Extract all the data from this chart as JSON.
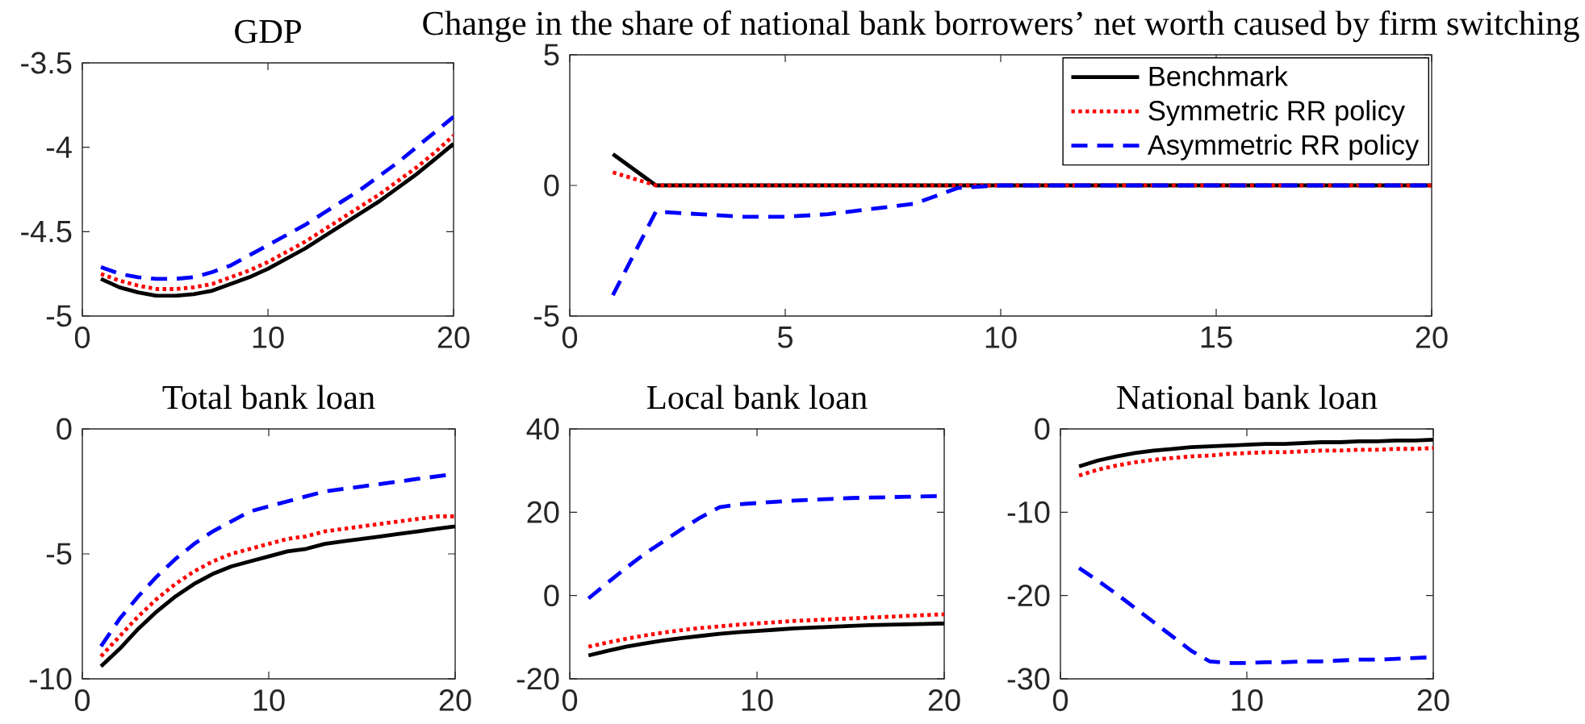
{
  "chart_data": [
    {
      "type": "line",
      "title": "GDP",
      "x": [
        1,
        2,
        3,
        4,
        5,
        6,
        7,
        8,
        9,
        10,
        11,
        12,
        13,
        14,
        15,
        16,
        17,
        18,
        19,
        20
      ],
      "xlim": [
        0,
        20
      ],
      "xticks": [
        0,
        10,
        20
      ],
      "ylim": [
        -5,
        -3.5
      ],
      "yticks": [
        -5,
        -4.5,
        -4,
        -3.5
      ],
      "series": [
        {
          "color": "#000000",
          "line_style": "solid",
          "values": [
            -4.78,
            -4.83,
            -4.86,
            -4.88,
            -4.88,
            -4.87,
            -4.85,
            -4.81,
            -4.77,
            -4.72,
            -4.66,
            -4.6,
            -4.53,
            -4.46,
            -4.39,
            -4.32,
            -4.24,
            -4.16,
            -4.07,
            -3.98
          ]
        },
        {
          "color": "#ff0000",
          "line_style": "dotted",
          "values": [
            -4.75,
            -4.79,
            -4.82,
            -4.84,
            -4.84,
            -4.83,
            -4.81,
            -4.77,
            -4.73,
            -4.68,
            -4.62,
            -4.56,
            -4.49,
            -4.42,
            -4.35,
            -4.28,
            -4.2,
            -4.12,
            -4.03,
            -3.93
          ]
        },
        {
          "color": "#0000ff",
          "line_style": "dashed",
          "values": [
            -4.71,
            -4.75,
            -4.77,
            -4.78,
            -4.78,
            -4.77,
            -4.74,
            -4.7,
            -4.64,
            -4.58,
            -4.52,
            -4.46,
            -4.39,
            -4.32,
            -4.25,
            -4.17,
            -4.09,
            -4.0,
            -3.91,
            -3.82
          ]
        }
      ]
    },
    {
      "type": "line",
      "title": "Change in the share of national bank borrowers’ net worth caused by firm switching",
      "x": [
        1,
        2,
        3,
        4,
        5,
        6,
        7,
        8,
        9,
        10,
        11,
        12,
        13,
        14,
        15,
        16,
        17,
        18,
        19,
        20
      ],
      "xlim": [
        0,
        20
      ],
      "xticks": [
        0,
        5,
        10,
        15,
        20
      ],
      "ylim": [
        -5,
        5
      ],
      "yticks": [
        -5,
        0,
        5
      ],
      "legend": "top right",
      "series": [
        {
          "name": "Benchmark",
          "color": "#000000",
          "line_style": "solid",
          "values": [
            1.2,
            0,
            0,
            0,
            0,
            0,
            0,
            0,
            0,
            0,
            0,
            0,
            0,
            0,
            0,
            0,
            0,
            0,
            0,
            0
          ]
        },
        {
          "name": "Symmetric RR policy",
          "color": "#ff0000",
          "line_style": "dotted",
          "values": [
            0.5,
            0,
            0,
            0,
            0,
            0,
            0,
            0,
            0,
            0,
            0,
            0,
            0,
            0,
            0,
            0,
            0,
            0,
            0,
            0
          ]
        },
        {
          "name": "Asymmetric RR policy",
          "color": "#0000ff",
          "line_style": "dashed",
          "values": [
            -4.2,
            -1.0,
            -1.1,
            -1.2,
            -1.2,
            -1.1,
            -0.9,
            -0.7,
            -0.1,
            0,
            0,
            0,
            0,
            0,
            0,
            0,
            0,
            0,
            0,
            0
          ]
        }
      ]
    },
    {
      "type": "line",
      "title": "Total bank loan",
      "x": [
        1,
        2,
        3,
        4,
        5,
        6,
        7,
        8,
        9,
        10,
        11,
        12,
        13,
        14,
        15,
        16,
        17,
        18,
        19,
        20
      ],
      "xlim": [
        0,
        20
      ],
      "xticks": [
        0,
        10,
        20
      ],
      "ylim": [
        -10,
        0
      ],
      "yticks": [
        -10,
        -5,
        0
      ],
      "series": [
        {
          "color": "#000000",
          "line_style": "solid",
          "values": [
            -9.5,
            -8.8,
            -8.0,
            -7.3,
            -6.7,
            -6.2,
            -5.8,
            -5.5,
            -5.3,
            -5.1,
            -4.9,
            -4.8,
            -4.6,
            -4.5,
            -4.4,
            -4.3,
            -4.2,
            -4.1,
            -4.0,
            -3.9
          ]
        },
        {
          "color": "#ff0000",
          "line_style": "dotted",
          "values": [
            -9.1,
            -8.3,
            -7.5,
            -6.8,
            -6.2,
            -5.7,
            -5.3,
            -5.0,
            -4.8,
            -4.6,
            -4.4,
            -4.3,
            -4.1,
            -4.0,
            -3.9,
            -3.8,
            -3.7,
            -3.6,
            -3.5,
            -3.5
          ]
        },
        {
          "color": "#0000ff",
          "line_style": "dashed",
          "values": [
            -8.7,
            -7.6,
            -6.7,
            -5.9,
            -5.2,
            -4.6,
            -4.1,
            -3.7,
            -3.3,
            -3.1,
            -2.9,
            -2.7,
            -2.5,
            -2.4,
            -2.3,
            -2.2,
            -2.1,
            -2.0,
            -1.9,
            -1.8
          ]
        }
      ]
    },
    {
      "type": "line",
      "title": "Local bank loan",
      "x": [
        1,
        2,
        3,
        4,
        5,
        6,
        7,
        8,
        9,
        10,
        11,
        12,
        13,
        14,
        15,
        16,
        17,
        18,
        19,
        20
      ],
      "xlim": [
        0,
        20
      ],
      "xticks": [
        0,
        10,
        20
      ],
      "ylim": [
        -20,
        40
      ],
      "yticks": [
        -20,
        0,
        20,
        40
      ],
      "series": [
        {
          "color": "#000000",
          "line_style": "solid",
          "values": [
            -14.4,
            -13.3,
            -12.3,
            -11.5,
            -10.8,
            -10.2,
            -9.7,
            -9.2,
            -8.8,
            -8.5,
            -8.2,
            -7.9,
            -7.7,
            -7.5,
            -7.3,
            -7.1,
            -7.0,
            -6.9,
            -6.8,
            -6.7
          ]
        },
        {
          "color": "#ff0000",
          "line_style": "dotted",
          "values": [
            -12.3,
            -11.3,
            -10.4,
            -9.6,
            -8.9,
            -8.3,
            -7.8,
            -7.4,
            -7.0,
            -6.7,
            -6.4,
            -6.1,
            -5.9,
            -5.7,
            -5.5,
            -5.3,
            -5.1,
            -4.9,
            -4.7,
            -4.5
          ]
        },
        {
          "color": "#0000ff",
          "line_style": "dashed",
          "values": [
            -0.7,
            3.0,
            6.6,
            10.0,
            13.0,
            16.0,
            18.8,
            21.2,
            21.9,
            22.2,
            22.5,
            22.8,
            23.0,
            23.2,
            23.4,
            23.5,
            23.6,
            23.7,
            23.8,
            23.9
          ]
        }
      ]
    },
    {
      "type": "line",
      "title": "National bank loan",
      "x": [
        1,
        2,
        3,
        4,
        5,
        6,
        7,
        8,
        9,
        10,
        11,
        12,
        13,
        14,
        15,
        16,
        17,
        18,
        19,
        20
      ],
      "xlim": [
        0,
        20
      ],
      "xticks": [
        0,
        10,
        20
      ],
      "ylim": [
        -30,
        0
      ],
      "yticks": [
        -30,
        -20,
        -10,
        0
      ],
      "series": [
        {
          "color": "#000000",
          "line_style": "solid",
          "values": [
            -4.5,
            -3.8,
            -3.3,
            -2.9,
            -2.6,
            -2.4,
            -2.2,
            -2.1,
            -2.0,
            -1.9,
            -1.8,
            -1.8,
            -1.7,
            -1.6,
            -1.6,
            -1.5,
            -1.5,
            -1.4,
            -1.4,
            -1.3
          ]
        },
        {
          "color": "#ff0000",
          "line_style": "dotted",
          "values": [
            -5.6,
            -4.9,
            -4.4,
            -4.0,
            -3.7,
            -3.5,
            -3.3,
            -3.2,
            -3.0,
            -2.9,
            -2.8,
            -2.8,
            -2.7,
            -2.6,
            -2.6,
            -2.5,
            -2.5,
            -2.4,
            -2.4,
            -2.3
          ]
        },
        {
          "color": "#0000ff",
          "line_style": "dashed",
          "values": [
            -16.7,
            -18.2,
            -19.8,
            -21.5,
            -23.2,
            -24.9,
            -26.6,
            -27.9,
            -28.1,
            -28.1,
            -28.0,
            -28.0,
            -27.9,
            -27.9,
            -27.8,
            -27.7,
            -27.7,
            -27.6,
            -27.5,
            -27.4
          ]
        }
      ]
    }
  ]
}
